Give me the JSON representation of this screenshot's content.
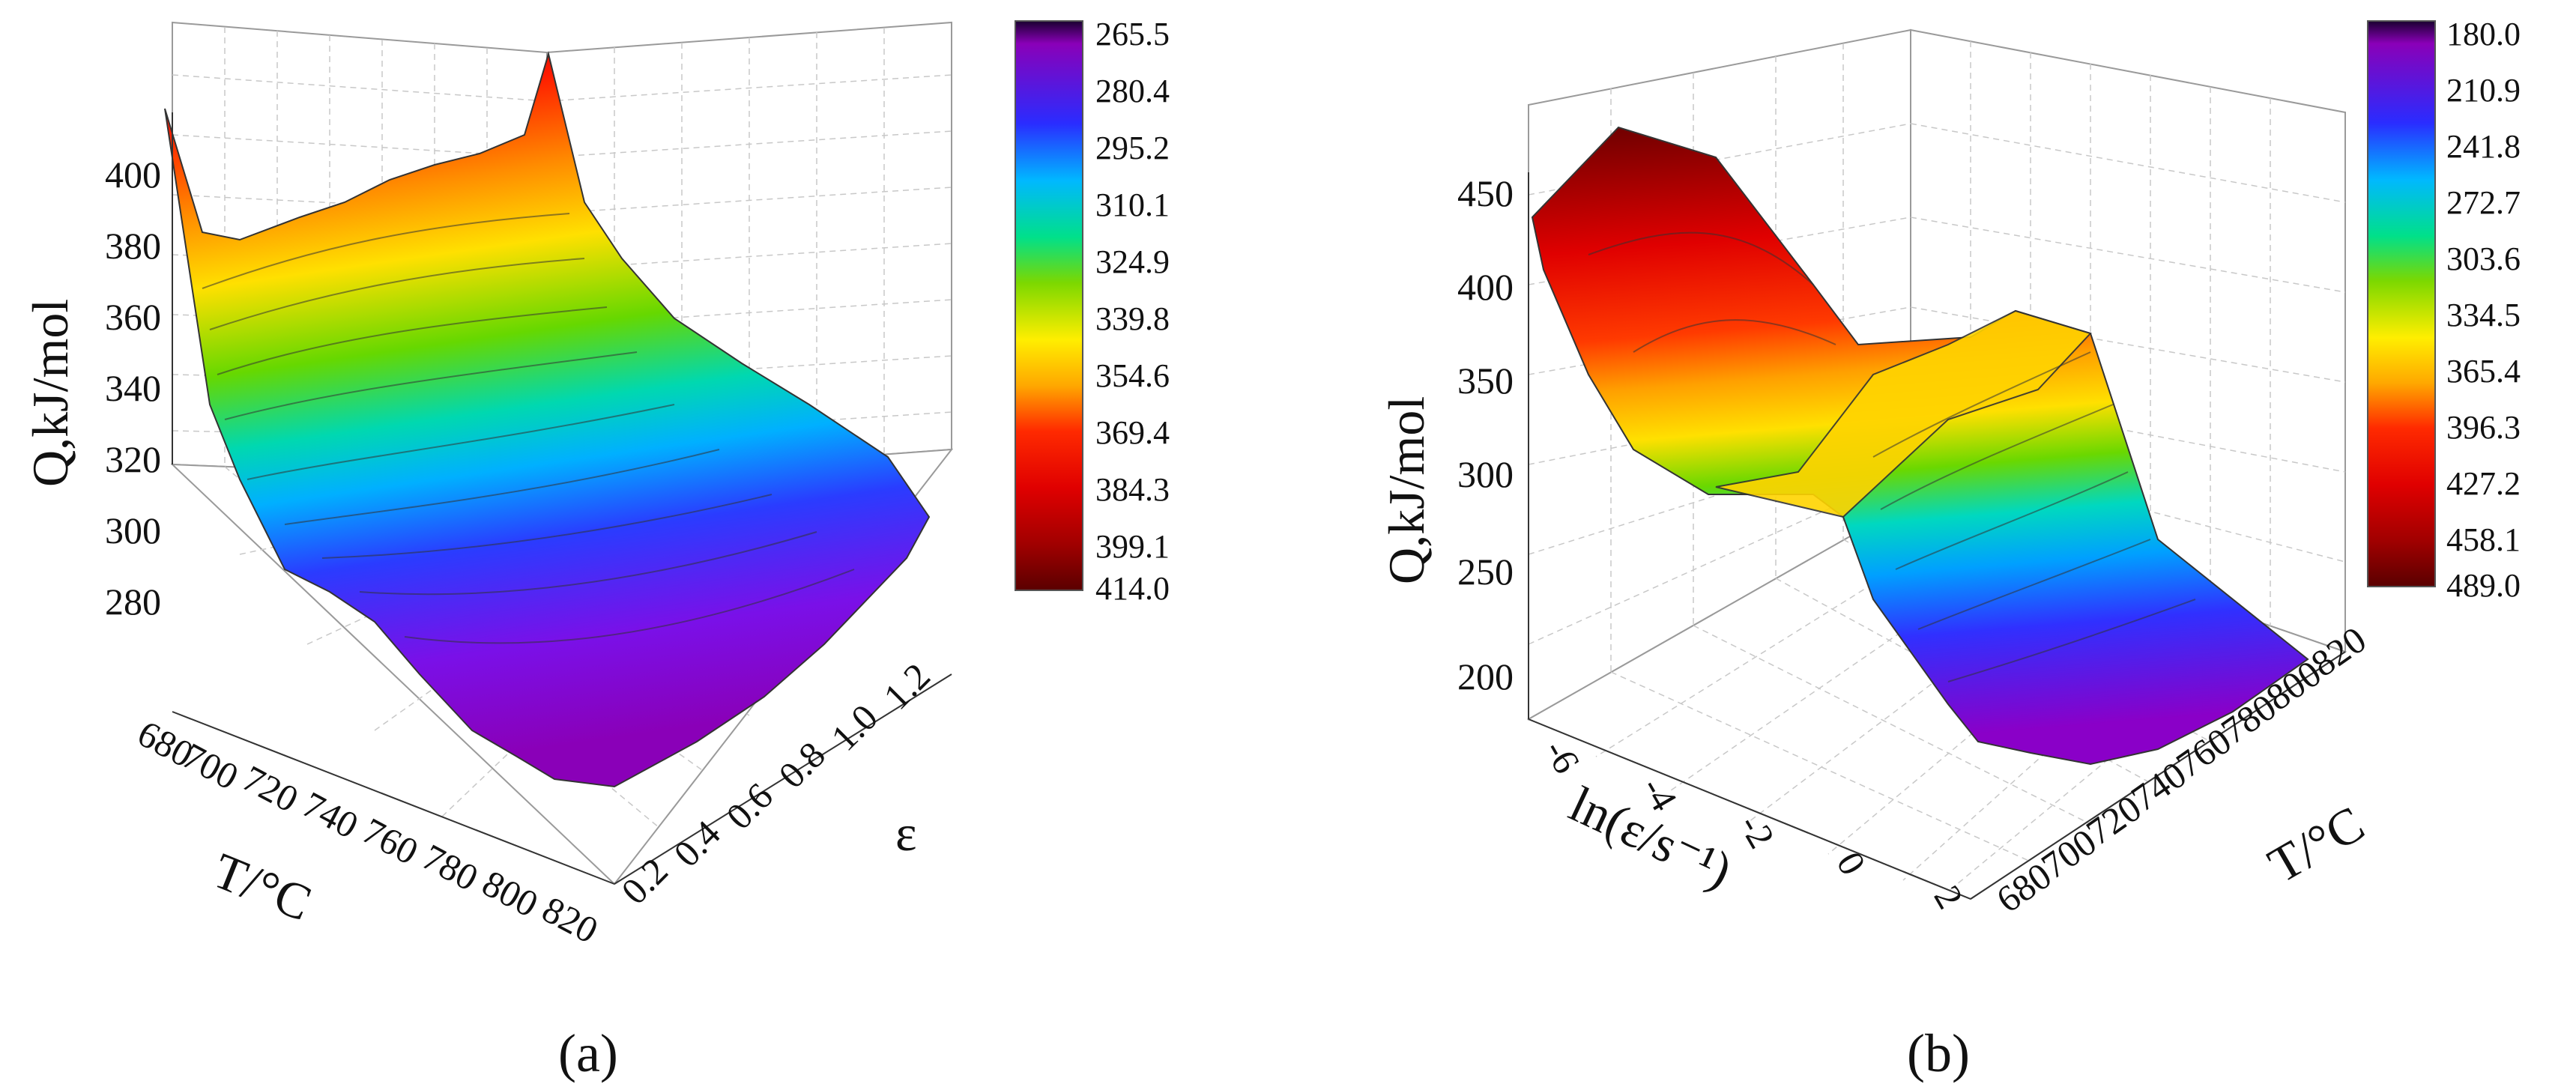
{
  "figure": {
    "panel_a_label": "(a)",
    "panel_b_label": "(b)"
  },
  "chart_data": [
    {
      "type": "surface3d",
      "panel": "a",
      "zlabel": "Q,kJ/mol",
      "x_label": "T/°C",
      "y_label": "ε",
      "x_ticks": [
        "680",
        "700",
        "720",
        "740",
        "760",
        "780",
        "800",
        "820"
      ],
      "y_ticks": [
        "0.2",
        "0.4",
        "0.6",
        "0.8",
        "1.0",
        "1.2"
      ],
      "z_ticks": [
        "280",
        "300",
        "320",
        "340",
        "360",
        "380",
        "400"
      ],
      "x": [
        680,
        820
      ],
      "y": [
        0.2,
        1.2
      ],
      "zlim": [
        270,
        420
      ],
      "grid": true,
      "colorbar": {
        "labels": [
          "265.5",
          "280.4",
          "295.2",
          "310.1",
          "324.9",
          "339.8",
          "354.6",
          "369.4",
          "384.3",
          "399.1",
          "414.0"
        ],
        "min": 265.5,
        "max": 414.0,
        "low_color": "#8a00b8",
        "high_color": "#6e0000"
      },
      "surface": {
        "T": [
          680,
          700,
          720,
          740,
          760,
          780,
          800,
          820
        ],
        "strain": [
          0.2,
          0.4,
          0.6,
          0.8,
          1.0,
          1.2
        ],
        "Q": [
          [
            412,
            380,
            375,
            385,
            395,
            402,
            408,
            418
          ],
          [
            395,
            375,
            372,
            378,
            386,
            393,
            400,
            410
          ],
          [
            360,
            352,
            348,
            350,
            355,
            360,
            365,
            370
          ],
          [
            310,
            305,
            300,
            298,
            300,
            305,
            308,
            312
          ],
          [
            290,
            282,
            276,
            272,
            270,
            275,
            282,
            290
          ],
          [
            285,
            276,
            268,
            266,
            266,
            270,
            278,
            290
          ]
        ]
      }
    },
    {
      "type": "surface3d",
      "panel": "b",
      "zlabel": "Q,kJ/mol",
      "x_label": "ln(ε/s⁻¹)",
      "y_label": "T/°C",
      "x_ticks": [
        "-6",
        "-4",
        "-2",
        "0",
        "2"
      ],
      "y_ticks": [
        "680",
        "700",
        "720",
        "740",
        "760",
        "780",
        "800",
        "820"
      ],
      "z_ticks": [
        "200",
        "250",
        "300",
        "350",
        "400",
        "450"
      ],
      "x": [
        -6,
        2
      ],
      "y": [
        680,
        820
      ],
      "zlim": [
        180,
        490
      ],
      "grid": true,
      "colorbar": {
        "labels": [
          "180.0",
          "210.9",
          "241.8",
          "272.7",
          "303.6",
          "334.5",
          "365.4",
          "396.3",
          "427.2",
          "458.1",
          "489.0"
        ],
        "min": 180.0,
        "max": 489.0,
        "low_color": "#8a00b8",
        "high_color": "#6e0000"
      },
      "surface": {
        "lnrate": [
          -6,
          -4,
          -2,
          0,
          2
        ],
        "T": [
          680,
          700,
          720,
          740,
          760,
          780,
          800,
          820
        ],
        "Q": [
          [
            440,
            465,
            480,
            488,
            480,
            470,
            460,
            455
          ],
          [
            410,
            420,
            430,
            440,
            445,
            440,
            435,
            430
          ],
          [
            370,
            365,
            360,
            355,
            350,
            345,
            345,
            350
          ],
          [
            330,
            330,
            335,
            338,
            340,
            342,
            338,
            335
          ],
          [
            230,
            210,
            200,
            195,
            192,
            195,
            198,
            205
          ]
        ]
      }
    }
  ]
}
